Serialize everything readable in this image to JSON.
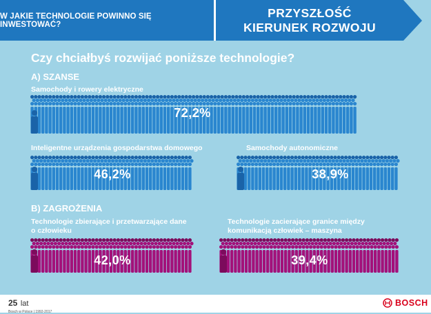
{
  "header": {
    "left_title": "W JAKIE TECHNOLOGIE POWINNO SIĘ INWESTOWAĆ?",
    "right_line1": "PRZYSZŁOŚĆ",
    "right_line2": "KIERUNEK ROZWOJU"
  },
  "question": "Czy chciałbyś rozwijać poniższe technologie?",
  "sections": {
    "a": "A) SZANSE",
    "b": "B) ZAGROŻENIA"
  },
  "chart_data": {
    "type": "pictogram",
    "title": "Czy chciałbyś rozwijać poniższe technologie?",
    "unit": "%",
    "groups": [
      "A) SZANSE",
      "B) ZAGROŻENIA"
    ],
    "items": [
      {
        "group": "A) SZANSE",
        "label": "Samochody i rowery elektryczne",
        "value": 72.2,
        "display": "72,2%"
      },
      {
        "group": "A) SZANSE",
        "label": "Inteligentne urządzenia gospodarstwa domowego",
        "value": 46.2,
        "display": "46,2%"
      },
      {
        "group": "A) SZANSE",
        "label": "Samochody autonomiczne",
        "value": 38.9,
        "display": "38,9%"
      },
      {
        "group": "B) ZAGROŻENIA",
        "label": "Technologie zbierające i przetwarzające dane o człowieku",
        "value": 42.0,
        "display": "42,0%"
      },
      {
        "group": "B) ZAGROŻENIA",
        "label": "Technologie zacierające granice między komunikacją człowiek – maszyna",
        "value": 39.4,
        "display": "39,4%"
      }
    ]
  },
  "colors": {
    "background": "#9fd3e6",
    "banner": "#1f77bf",
    "chance": "#2a86cf",
    "chance_dark": "#1a63a8",
    "threat": "#a3117a",
    "threat_dark": "#7c0b5c",
    "brand": "#d9001b"
  },
  "footer": {
    "number": "25",
    "unit": "lat",
    "sub": "Bosch w Polsce | 1992-2017",
    "brand": "BOSCH"
  }
}
